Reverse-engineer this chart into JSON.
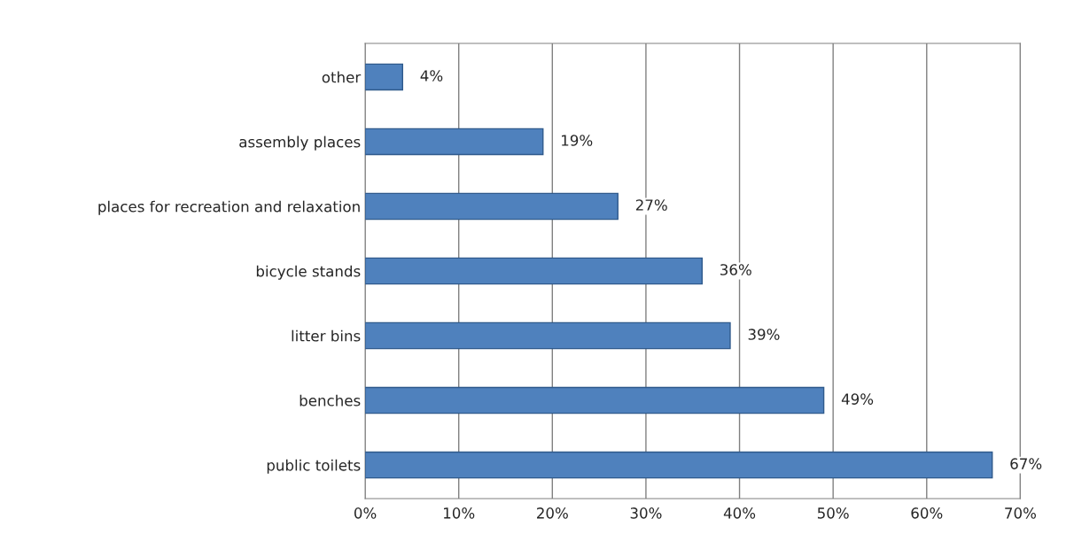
{
  "chart_data": {
    "type": "bar",
    "orientation": "horizontal",
    "categories": [
      "other",
      "assembly places",
      "places for recreation and relaxation",
      "bicycle stands",
      "litter bins",
      "benches",
      "public toilets"
    ],
    "values": [
      4,
      19,
      27,
      36,
      39,
      49,
      67
    ],
    "value_labels": [
      "4%",
      "19%",
      "27%",
      "36%",
      "39%",
      "49%",
      "67%"
    ],
    "color": "#4f81bd",
    "xlim": [
      0,
      70
    ],
    "xticks": [
      {
        "value": 0,
        "label": "0%"
      },
      {
        "value": 10,
        "label": "10%"
      },
      {
        "value": 20,
        "label": "20%"
      },
      {
        "value": 30,
        "label": "30%"
      },
      {
        "value": 40,
        "label": "40%"
      },
      {
        "value": 50,
        "label": "50%"
      },
      {
        "value": 60,
        "label": "60%"
      },
      {
        "value": 70,
        "label": "70%"
      }
    ],
    "grid": "x"
  }
}
